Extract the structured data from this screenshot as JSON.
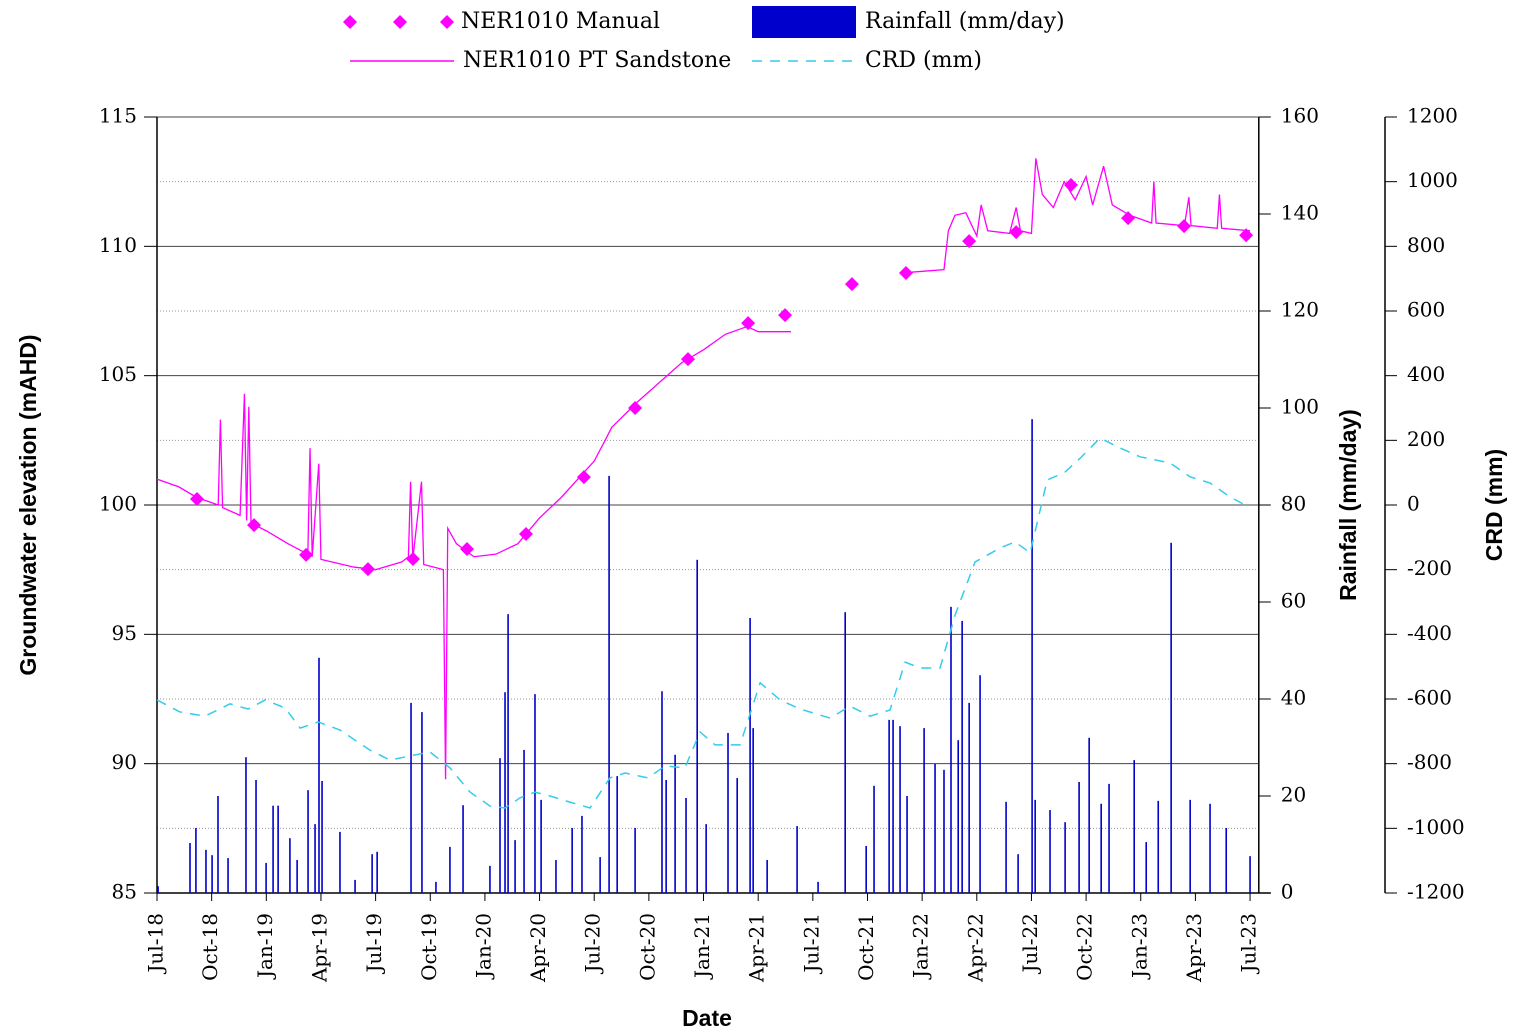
{
  "chart_data": {
    "type": "combo",
    "x_label": "Date",
    "y_label": "Groundwater elevation (mAHD)",
    "y2_label": "Rainfall (mm/day)",
    "y3_label": "CRD (mm)",
    "xlim": [
      2018.5,
      2023.54
    ],
    "xticks": [
      {
        "value": 2018.5,
        "label": "Jul-18"
      },
      {
        "value": 2018.75,
        "label": "Oct-18"
      },
      {
        "value": 2019.0,
        "label": "Jan-19"
      },
      {
        "value": 2019.25,
        "label": "Apr-19"
      },
      {
        "value": 2019.5,
        "label": "Jul-19"
      },
      {
        "value": 2019.75,
        "label": "Oct-19"
      },
      {
        "value": 2020.0,
        "label": "Jan-20"
      },
      {
        "value": 2020.25,
        "label": "Apr-20"
      },
      {
        "value": 2020.5,
        "label": "Jul-20"
      },
      {
        "value": 2020.75,
        "label": "Oct-20"
      },
      {
        "value": 2021.0,
        "label": "Jan-21"
      },
      {
        "value": 2021.25,
        "label": "Apr-21"
      },
      {
        "value": 2021.5,
        "label": "Jul-21"
      },
      {
        "value": 2021.75,
        "label": "Oct-21"
      },
      {
        "value": 2022.0,
        "label": "Jan-22"
      },
      {
        "value": 2022.25,
        "label": "Apr-22"
      },
      {
        "value": 2022.5,
        "label": "Jul-22"
      },
      {
        "value": 2022.75,
        "label": "Oct-22"
      },
      {
        "value": 2023.0,
        "label": "Jan-23"
      },
      {
        "value": 2023.25,
        "label": "Apr-23"
      },
      {
        "value": 2023.5,
        "label": "Jul-23"
      }
    ],
    "ylim": [
      85,
      115
    ],
    "yticks": [
      85,
      90,
      95,
      100,
      105,
      110,
      115
    ],
    "yticks_minor": [
      87.5,
      92.5,
      97.5,
      102.5,
      107.5,
      112.5
    ],
    "y2lim": [
      0,
      160
    ],
    "y2ticks": [
      0,
      20,
      40,
      60,
      80,
      100,
      120,
      140,
      160
    ],
    "y3lim": [
      -1200,
      1200
    ],
    "y3ticks": [
      -1200,
      -1000,
      -800,
      -600,
      -400,
      -200,
      0,
      200,
      400,
      600,
      800,
      1000,
      1200
    ],
    "grid": true,
    "legend": "top",
    "series": [
      {
        "name": "NER1010 Manual",
        "kind": "scatter",
        "marker": "diamond",
        "color": "#ff00ff",
        "x": [
          2018.683,
          2018.944,
          2019.182,
          2019.465,
          2019.671,
          2019.918,
          2020.188,
          2020.453,
          2020.687,
          2020.929,
          2021.204,
          2021.373,
          2021.679,
          2021.926,
          2022.215,
          2022.43,
          2022.681,
          2022.942,
          2023.198,
          2023.482
        ],
        "values": [
          100.23,
          99.22,
          98.07,
          97.52,
          97.91,
          98.3,
          98.88,
          101.08,
          103.75,
          105.64,
          107.03,
          107.34,
          108.54,
          108.97,
          110.2,
          110.55,
          112.37,
          111.09,
          110.78,
          110.43
        ]
      },
      {
        "name": "Rainfall (mm/day)",
        "kind": "bar",
        "axis": "y2",
        "color": "#0000cc",
        "x": [
          2018.505,
          2018.651,
          2018.678,
          2018.724,
          2018.752,
          2018.779,
          2018.825,
          2018.907,
          2018.953,
          2018.999,
          2019.031,
          2019.054,
          2019.108,
          2019.141,
          2019.191,
          2019.223,
          2019.241,
          2019.255,
          2019.337,
          2019.406,
          2019.484,
          2019.507,
          2019.662,
          2019.712,
          2019.776,
          2019.84,
          2019.9,
          2020.023,
          2020.069,
          2020.092,
          2020.106,
          2020.138,
          2020.179,
          2020.229,
          2020.257,
          2020.325,
          2020.399,
          2020.444,
          2020.527,
          2020.568,
          2020.605,
          2020.687,
          2020.81,
          2020.829,
          2020.87,
          2020.92,
          2020.971,
          2021.012,
          2021.112,
          2021.154,
          2021.213,
          2021.227,
          2021.291,
          2021.428,
          2021.524,
          2021.648,
          2021.744,
          2021.78,
          2021.849,
          2021.867,
          2021.899,
          2021.931,
          2022.009,
          2022.059,
          2022.1,
          2022.132,
          2022.165,
          2022.183,
          2022.215,
          2022.265,
          2022.384,
          2022.439,
          2022.503,
          2022.517,
          2022.585,
          2022.654,
          2022.718,
          2022.764,
          2022.819,
          2022.855,
          2022.97,
          2023.025,
          2023.08,
          2023.139,
          2023.226,
          2023.317,
          2023.391,
          2023.5
        ],
        "values": [
          1.4,
          10.3,
          13.4,
          8.9,
          7.8,
          20,
          7.2,
          28,
          23.3,
          6.2,
          18,
          18,
          11.3,
          6.8,
          21.2,
          14.2,
          48.5,
          23.1,
          12.6,
          2.7,
          8,
          8.5,
          39.2,
          37.3,
          2.3,
          9.5,
          18.1,
          5.6,
          27.8,
          41.4,
          57.5,
          10.9,
          29.5,
          41,
          19.2,
          6.8,
          13.4,
          15.9,
          7.4,
          86,
          24.1,
          13.4,
          41.6,
          23.3,
          28.5,
          19.6,
          68.7,
          14.2,
          33,
          23.7,
          56.7,
          34,
          6.8,
          13.8,
          2.3,
          57.9,
          9.7,
          22.1,
          35.7,
          35.7,
          34.4,
          20,
          34,
          26.6,
          25.4,
          59,
          31.5,
          56.1,
          39.2,
          44.9,
          18.8,
          8,
          97.7,
          19.2,
          17.1,
          14.6,
          22.9,
          32,
          18.4,
          22.5,
          27.4,
          10.5,
          19,
          72.2,
          19.2,
          18.4,
          13.4,
          7.6
        ]
      },
      {
        "name": "NER1010 PT Sandstone",
        "kind": "line",
        "color": "#ff00ff",
        "x": [
          2018.5,
          2018.6,
          2018.68,
          2018.78,
          2018.79,
          2018.8,
          2018.88,
          2018.9,
          2018.91,
          2018.92,
          2018.93,
          2019.0,
          2019.1,
          2019.19,
          2019.2,
          2019.21,
          2019.24,
          2019.25,
          2019.4,
          2019.5,
          2019.62,
          2019.65,
          2019.66,
          2019.67,
          2019.71,
          2019.72,
          2019.81,
          2019.82,
          2019.83,
          2019.87,
          2019.95,
          2020.05,
          2020.15,
          2020.25,
          2020.35,
          2020.5,
          2020.55,
          2020.58,
          2020.7,
          2020.82,
          2020.9,
          2021.0,
          2021.1,
          2021.2,
          2021.25,
          2021.4,
          null,
          2021.95,
          2022.1,
          2022.12,
          2022.15,
          2022.2,
          2022.25,
          2022.27,
          2022.3,
          2022.4,
          2022.43,
          2022.45,
          2022.5,
          2022.52,
          2022.55,
          2022.6,
          2022.65,
          2022.7,
          2022.75,
          2022.78,
          2022.83,
          2022.87,
          2022.95,
          2023.05,
          2023.06,
          2023.07,
          2023.2,
          2023.22,
          2023.23,
          2023.35,
          2023.36,
          2023.37,
          2023.5
        ],
        "values": [
          101.0,
          100.7,
          100.3,
          100.0,
          103.3,
          99.9,
          99.6,
          104.3,
          99.4,
          103.8,
          99.3,
          99.0,
          98.5,
          98.1,
          102.2,
          98.0,
          101.6,
          97.9,
          97.6,
          97.5,
          97.8,
          98.0,
          100.9,
          97.9,
          100.9,
          97.7,
          97.5,
          89.4,
          99.1,
          98.5,
          98.0,
          98.1,
          98.5,
          99.5,
          100.3,
          101.7,
          102.5,
          103.0,
          104.0,
          104.9,
          105.5,
          106.0,
          106.6,
          106.9,
          106.7,
          106.7,
          null,
          109.0,
          109.1,
          110.6,
          111.2,
          111.3,
          110.4,
          111.6,
          110.6,
          110.5,
          111.5,
          110.6,
          110.5,
          113.4,
          112.0,
          111.5,
          112.5,
          111.8,
          112.7,
          111.6,
          113.1,
          111.6,
          111.2,
          110.9,
          112.5,
          110.9,
          110.8,
          111.9,
          110.8,
          110.7,
          112.0,
          110.7,
          110.6
        ]
      },
      {
        "name": "CRD (mm)",
        "kind": "line",
        "axis": "y3",
        "dashed": true,
        "color": "#33ccee",
        "x": [
          2018.5,
          2018.605,
          2018.72,
          2018.834,
          2018.917,
          2018.995,
          2019.086,
          2019.155,
          2019.237,
          2019.337,
          2019.474,
          2019.566,
          2019.657,
          2019.749,
          2019.84,
          2019.932,
          2020.023,
          2020.092,
          2020.16,
          2020.229,
          2020.298,
          2020.389,
          2020.481,
          2020.572,
          2020.641,
          2020.746,
          2020.824,
          2020.915,
          2020.984,
          2021.053,
          2021.167,
          2021.259,
          2021.35,
          2021.442,
          2021.579,
          2021.67,
          2021.762,
          2021.853,
          2021.922,
          2021.99,
          2022.082,
          2022.151,
          2022.242,
          2022.357,
          2022.425,
          2022.494,
          2022.572,
          2022.654,
          2022.723,
          2022.814,
          2022.906,
          2022.997,
          2023.134,
          2023.226,
          2023.317,
          2023.408,
          2023.477
        ],
        "values": [
          -603,
          -640,
          -653,
          -615,
          -631,
          -603,
          -628,
          -690,
          -671,
          -696,
          -758,
          -789,
          -776,
          -764,
          -813,
          -888,
          -931,
          -937,
          -906,
          -888,
          -900,
          -919,
          -937,
          -844,
          -829,
          -844,
          -807,
          -813,
          -702,
          -742,
          -742,
          -550,
          -603,
          -631,
          -659,
          -622,
          -653,
          -634,
          -486,
          -504,
          -504,
          -340,
          -176,
          -133,
          -114,
          -148,
          77,
          102,
          145,
          207,
          176,
          149,
          130,
          87,
          68,
          25,
          0
        ]
      }
    ]
  }
}
